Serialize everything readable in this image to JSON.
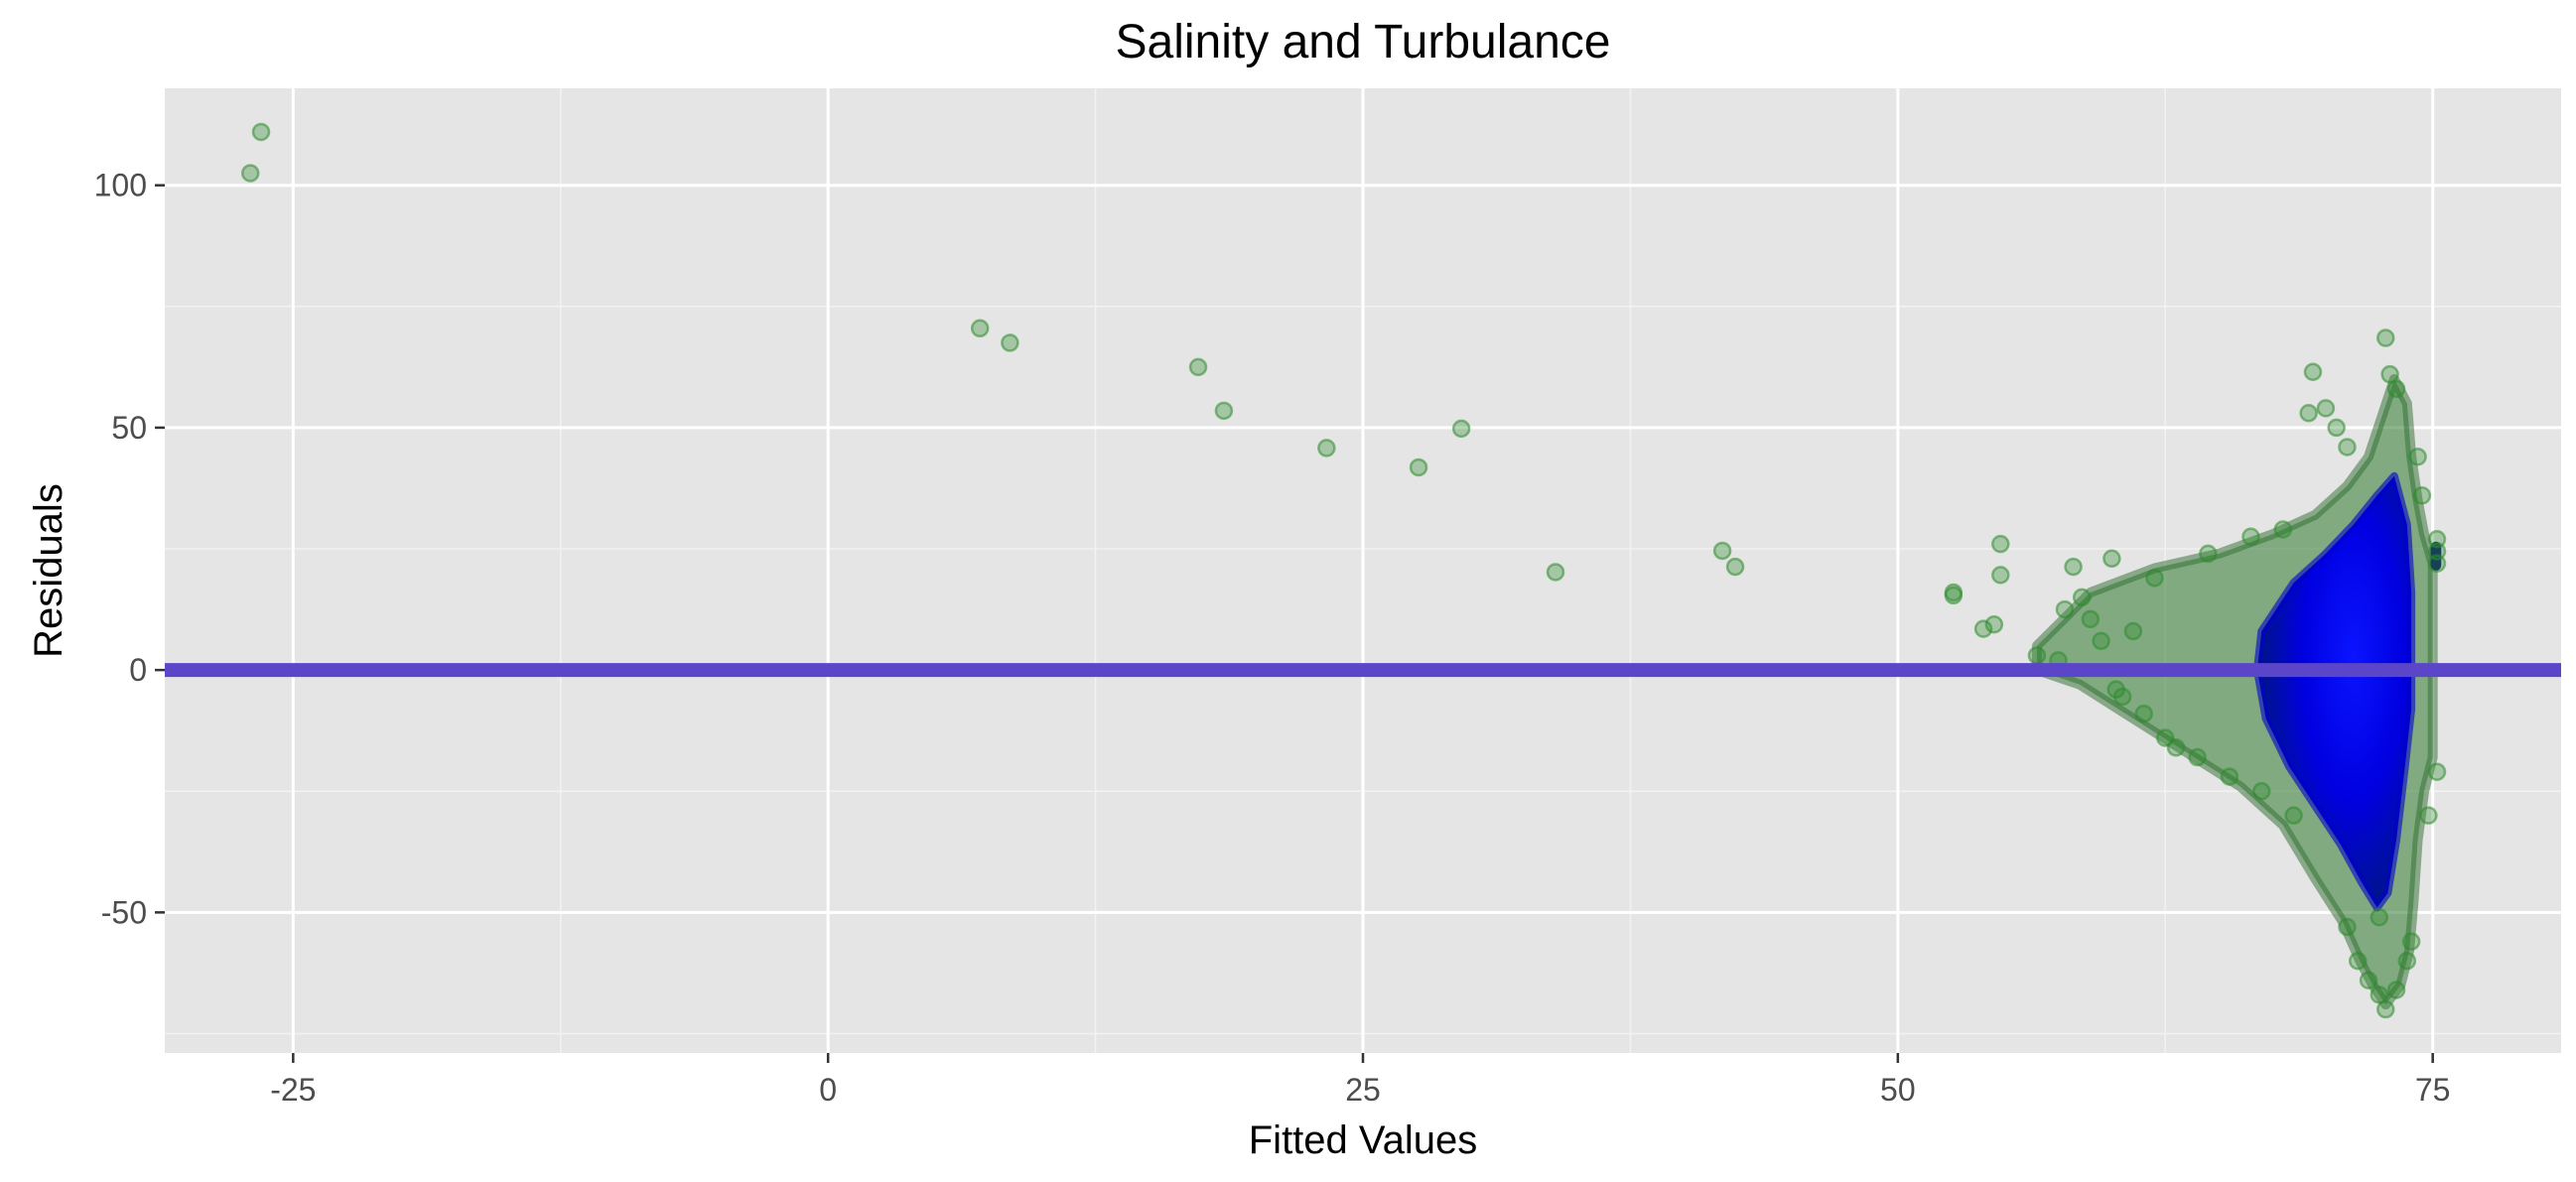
{
  "chart_data": {
    "type": "scatter",
    "title": "Salinity and Turbulance",
    "xlabel": "Fitted Values",
    "ylabel": "Residuals",
    "xlim": [
      -31,
      81
    ],
    "ylim": [
      -79,
      120
    ],
    "x_ticks": [
      -25,
      0,
      25,
      50,
      75
    ],
    "y_ticks": [
      -50,
      0,
      50,
      100
    ],
    "x_minor": [
      -12.5,
      12.5,
      37.5,
      62.5
    ],
    "y_minor": [
      -75,
      -25,
      25,
      75
    ],
    "grid": true,
    "legend": "none",
    "point_color": "#2e8b2e",
    "dense_color": "#0000ff",
    "panel_color": "#e5e5e5",
    "hline": {
      "y": 0,
      "color": "#5b45c9"
    },
    "series": [
      {
        "points": [
          [
            -26.5,
            111
          ],
          [
            -27.0,
            102.5
          ],
          [
            7.1,
            70.5
          ],
          [
            8.5,
            67.5
          ],
          [
            17.3,
            62.5
          ],
          [
            18.5,
            53.5
          ],
          [
            23.3,
            45.8
          ],
          [
            27.6,
            41.8
          ],
          [
            29.6,
            49.8
          ],
          [
            34.0,
            20.2
          ],
          [
            41.8,
            24.6
          ],
          [
            42.4,
            21.3
          ],
          [
            52.6,
            16.0
          ],
          [
            52.6,
            15.4
          ],
          [
            54.8,
            26.0
          ],
          [
            54.8,
            19.6
          ],
          [
            54.0,
            8.5
          ],
          [
            54.5,
            9.4
          ],
          [
            56.5,
            3.0
          ],
          [
            57.5,
            2.0
          ],
          [
            57.8,
            12.5
          ],
          [
            58.2,
            21.3
          ],
          [
            58.6,
            15.0
          ],
          [
            59.0,
            10.5
          ],
          [
            59.5,
            6.0
          ],
          [
            60.0,
            23.0
          ],
          [
            60.2,
            -4.0
          ],
          [
            60.5,
            -5.5
          ],
          [
            61.0,
            8.0
          ],
          [
            61.5,
            -9.0
          ],
          [
            62.0,
            19.0
          ],
          [
            62.5,
            -14.0
          ],
          [
            63.0,
            -16.0
          ],
          [
            64.0,
            -18.0
          ],
          [
            64.5,
            24.0
          ],
          [
            65.5,
            -22.0
          ],
          [
            66.5,
            27.5
          ],
          [
            67.0,
            -25.0
          ],
          [
            68.0,
            29.0
          ],
          [
            68.5,
            -30.0
          ],
          [
            69.4,
            61.5
          ],
          [
            69.2,
            53.0
          ],
          [
            70.0,
            54.0
          ],
          [
            70.5,
            50.0
          ],
          [
            71.0,
            46.0
          ],
          [
            72.8,
            68.5
          ],
          [
            73.0,
            61.0
          ],
          [
            73.3,
            58.0
          ],
          [
            72.5,
            -51.0
          ],
          [
            71.0,
            -53.0
          ],
          [
            71.5,
            -60.0
          ],
          [
            72.0,
            -64.0
          ],
          [
            72.5,
            -67.0
          ],
          [
            72.8,
            -70.0
          ],
          [
            73.3,
            -66.0
          ],
          [
            73.8,
            -60.0
          ],
          [
            74.0,
            -56.0
          ],
          [
            75.2,
            27.0
          ],
          [
            75.2,
            24.5
          ],
          [
            75.2,
            22.0
          ],
          [
            75.2,
            -21.0
          ],
          [
            74.8,
            -30.0
          ],
          [
            74.5,
            36.0
          ],
          [
            74.3,
            44.0
          ]
        ]
      }
    ]
  }
}
